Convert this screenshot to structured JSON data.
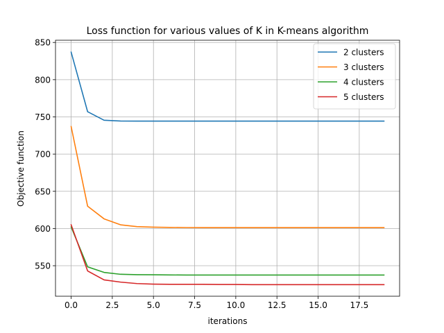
{
  "chart_data": {
    "type": "line",
    "title": "Loss function for various values of K in K-means algorithm",
    "xlabel": "iterations",
    "ylabel": "Objective function",
    "xlim": [
      -0.95,
      19.95
    ],
    "ylim": [
      509,
      853
    ],
    "xticks": [
      0.0,
      2.5,
      5.0,
      7.5,
      10.0,
      12.5,
      15.0,
      17.5
    ],
    "xtick_labels": [
      "0.0",
      "2.5",
      "5.0",
      "7.5",
      "10.0",
      "12.5",
      "15.0",
      "17.5"
    ],
    "yticks": [
      550,
      600,
      650,
      700,
      750,
      800,
      850
    ],
    "ytick_labels": [
      "550",
      "600",
      "650",
      "700",
      "750",
      "800",
      "850"
    ],
    "grid": true,
    "legend_position": "top-right",
    "x": [
      0,
      1,
      2,
      3,
      4,
      5,
      6,
      7,
      8,
      9,
      10,
      11,
      12,
      13,
      14,
      15,
      16,
      17,
      18,
      19
    ],
    "series": [
      {
        "name": "2 clusters",
        "color": "#1f77b4",
        "values": [
          837,
          757,
          745.5,
          744.5,
          744.3,
          744.3,
          744.3,
          744.3,
          744.3,
          744.3,
          744.3,
          744.3,
          744.3,
          744.3,
          744.3,
          744.3,
          744.3,
          744.3,
          744.3,
          744.3
        ]
      },
      {
        "name": "3 clusters",
        "color": "#ff7f0e",
        "values": [
          737,
          630,
          613,
          605,
          602.5,
          601.8,
          601.5,
          601.3,
          601.2,
          601.2,
          601.2,
          601.2,
          601.2,
          601.2,
          601.2,
          601.2,
          601.2,
          601.2,
          601.2,
          601.2
        ]
      },
      {
        "name": "4 clusters",
        "color": "#2ca02c",
        "values": [
          602,
          548.5,
          541,
          538.5,
          538,
          537.8,
          537.6,
          537.5,
          537.5,
          537.5,
          537.5,
          537.5,
          537.5,
          537.5,
          537.5,
          537.5,
          537.5,
          537.5,
          537.5,
          537.5
        ]
      },
      {
        "name": "5 clusters",
        "color": "#d62728",
        "values": [
          605,
          543,
          531,
          528,
          526,
          525.3,
          525,
          525,
          525,
          524.8,
          524.8,
          524.6,
          524.6,
          524.6,
          524.6,
          524.6,
          524.6,
          524.6,
          524.6,
          524.6
        ]
      }
    ]
  }
}
